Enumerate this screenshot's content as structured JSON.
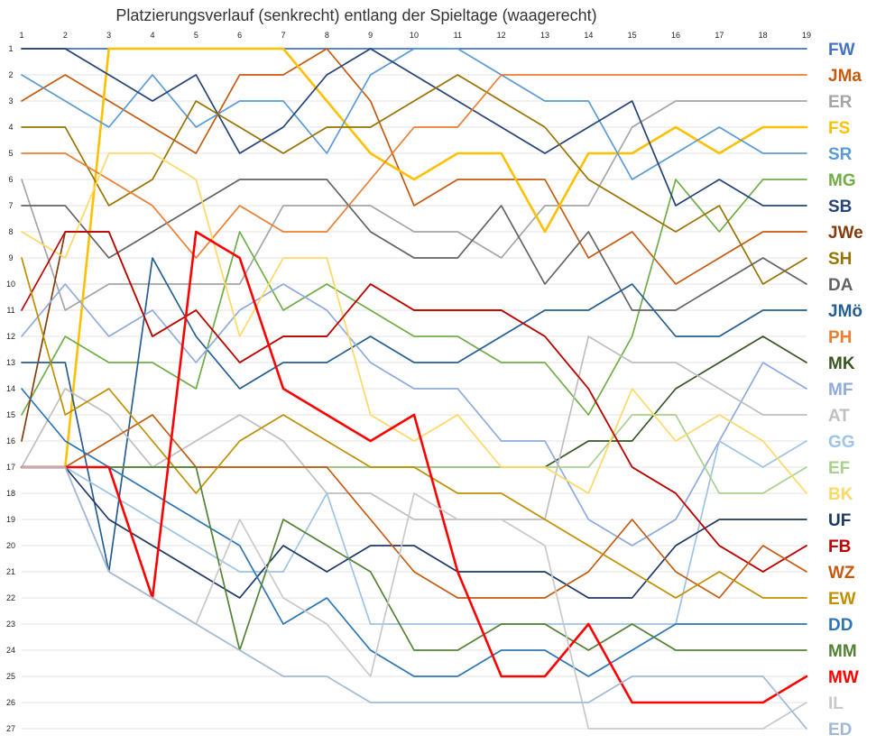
{
  "chart_data": {
    "type": "line",
    "title": "Platzierungsverlauf (senkrecht) entlang der Spieltage (waagerecht)",
    "x": [
      1,
      2,
      3,
      4,
      5,
      6,
      7,
      8,
      9,
      10,
      11,
      12,
      13,
      14,
      15,
      16,
      17,
      18,
      19
    ],
    "ylim": [
      1,
      27
    ],
    "y_inverted": true,
    "grid": true,
    "legend_placement": "right",
    "series": [
      {
        "name": "FW",
        "color": "#4472C4",
        "values": [
          1,
          1,
          1,
          1,
          1,
          1,
          1,
          1,
          1,
          1,
          1,
          1,
          1,
          1,
          1,
          1,
          1,
          1,
          1
        ]
      },
      {
        "name": "JMa",
        "color": "#C55A11",
        "values": [
          3,
          2,
          3,
          4,
          5,
          2,
          2,
          1,
          3,
          7,
          6,
          6,
          6,
          9,
          8,
          10,
          9,
          8,
          8
        ]
      },
      {
        "name": "ER",
        "color": "#A5A5A5",
        "values": [
          6,
          11,
          10,
          10,
          10,
          10,
          7,
          7,
          7,
          8,
          8,
          9,
          7,
          7,
          4,
          3,
          3,
          3,
          3
        ]
      },
      {
        "name": "FS",
        "color": "#FFC000",
        "values": [
          17,
          17,
          1,
          1,
          1,
          1,
          1,
          3,
          5,
          6,
          5,
          5,
          8,
          5,
          5,
          4,
          5,
          4,
          4
        ]
      },
      {
        "name": "SR",
        "color": "#5B9BD5",
        "values": [
          2,
          3,
          4,
          2,
          4,
          3,
          3,
          5,
          2,
          1,
          1,
          2,
          3,
          3,
          6,
          5,
          4,
          5,
          5
        ]
      },
      {
        "name": "MG",
        "color": "#70AD47",
        "values": [
          15,
          12,
          13,
          13,
          14,
          8,
          11,
          10,
          11,
          12,
          12,
          13,
          13,
          15,
          12,
          6,
          8,
          6,
          6
        ]
      },
      {
        "name": "SB",
        "color": "#264478",
        "values": [
          1,
          1,
          2,
          3,
          2,
          5,
          4,
          2,
          1,
          2,
          3,
          4,
          5,
          4,
          3,
          7,
          6,
          7,
          7
        ]
      },
      {
        "name": "JWe",
        "color": "#843C0C",
        "values": [
          16,
          8,
          8,
          12,
          11,
          13,
          12,
          12,
          10,
          11,
          11,
          11,
          12,
          14,
          17,
          18,
          20,
          21,
          20
        ]
      },
      {
        "name": "SH",
        "color": "#997300",
        "values": [
          4,
          4,
          7,
          6,
          3,
          4,
          5,
          4,
          4,
          3,
          2,
          3,
          4,
          6,
          7,
          8,
          7,
          10,
          9
        ]
      },
      {
        "name": "DA",
        "color": "#636363",
        "values": [
          7,
          7,
          9,
          8,
          7,
          6,
          6,
          6,
          8,
          9,
          9,
          7,
          10,
          8,
          11,
          11,
          10,
          9,
          10
        ]
      },
      {
        "name": "JMö",
        "color": "#255E91",
        "values": [
          13,
          13,
          21,
          9,
          12,
          14,
          13,
          13,
          12,
          13,
          13,
          12,
          11,
          11,
          10,
          12,
          12,
          11,
          11
        ]
      },
      {
        "name": "PH",
        "color": "#ED7D31",
        "values": [
          5,
          5,
          6,
          7,
          9,
          7,
          8,
          8,
          6,
          4,
          4,
          2,
          2,
          2,
          2,
          2,
          2,
          2,
          2
        ]
      },
      {
        "name": "MK",
        "color": "#375623",
        "values": [
          17,
          17,
          17,
          17,
          17,
          17,
          17,
          17,
          17,
          17,
          17,
          17,
          17,
          16,
          16,
          14,
          13,
          12,
          13
        ]
      },
      {
        "name": "MF",
        "color": "#8FAADC",
        "values": [
          12,
          10,
          12,
          11,
          13,
          11,
          10,
          11,
          13,
          14,
          14,
          16,
          16,
          19,
          20,
          19,
          16,
          13,
          14
        ]
      },
      {
        "name": "AT",
        "color": "#BFBFBF",
        "values": [
          17,
          14,
          15,
          17,
          16,
          15,
          16,
          18,
          18,
          19,
          19,
          19,
          19,
          12,
          13,
          13,
          14,
          15,
          15
        ]
      },
      {
        "name": "GG",
        "color": "#9DC3E6",
        "values": [
          17,
          17,
          18,
          19,
          20,
          21,
          21,
          18,
          23,
          23,
          23,
          23,
          23,
          23,
          23,
          23,
          16,
          17,
          16
        ]
      },
      {
        "name": "EF",
        "color": "#A9D18E",
        "values": [
          17,
          17,
          17,
          17,
          17,
          17,
          17,
          17,
          17,
          17,
          17,
          17,
          17,
          17,
          15,
          15,
          18,
          18,
          17
        ]
      },
      {
        "name": "BK",
        "color": "#FFD966",
        "values": [
          8,
          9,
          5,
          5,
          6,
          12,
          9,
          9,
          15,
          16,
          15,
          17,
          17,
          18,
          14,
          16,
          15,
          16,
          18
        ]
      },
      {
        "name": "UF",
        "color": "#1F3864",
        "values": [
          17,
          17,
          19,
          20,
          21,
          22,
          20,
          21,
          20,
          20,
          21,
          21,
          21,
          22,
          22,
          20,
          19,
          19,
          19
        ]
      },
      {
        "name": "FB",
        "color": "#C00000",
        "values": [
          11,
          8,
          8,
          12,
          11,
          13,
          12,
          12,
          10,
          11,
          11,
          11,
          12,
          14,
          17,
          18,
          20,
          21,
          20
        ]
      },
      {
        "name": "WZ",
        "color": "#C55A11",
        "values": [
          17,
          17,
          16,
          15,
          17,
          17,
          17,
          17,
          19,
          21,
          22,
          22,
          22,
          21,
          19,
          21,
          22,
          20,
          21
        ]
      },
      {
        "name": "EW",
        "color": "#BF9000",
        "values": [
          9,
          15,
          14,
          16,
          18,
          16,
          15,
          16,
          17,
          17,
          18,
          18,
          19,
          20,
          21,
          22,
          21,
          22,
          22
        ]
      },
      {
        "name": "DD",
        "color": "#2E75B6",
        "values": [
          14,
          16,
          17,
          18,
          19,
          20,
          23,
          22,
          24,
          25,
          25,
          24,
          24,
          25,
          24,
          23,
          23,
          23,
          23
        ]
      },
      {
        "name": "MM",
        "color": "#548235",
        "values": [
          17,
          17,
          17,
          17,
          17,
          24,
          19,
          20,
          21,
          24,
          24,
          23,
          23,
          24,
          23,
          24,
          24,
          24,
          24
        ]
      },
      {
        "name": "MW",
        "color": "#FF0000",
        "values": [
          17,
          17,
          17,
          22,
          8,
          9,
          14,
          15,
          16,
          15,
          21,
          25,
          25,
          23,
          26,
          26,
          26,
          26,
          25
        ]
      },
      {
        "name": "IL",
        "color": "#C9C9C9",
        "values": [
          17,
          17,
          21,
          22,
          23,
          19,
          22,
          23,
          25,
          18,
          19,
          19,
          20,
          27,
          27,
          27,
          27,
          27,
          26
        ]
      },
      {
        "name": "ED",
        "color": "#A2B9D6",
        "values": [
          17,
          17,
          21,
          22,
          23,
          24,
          25,
          25,
          26,
          26,
          26,
          26,
          26,
          26,
          25,
          25,
          25,
          25,
          27
        ]
      }
    ]
  }
}
